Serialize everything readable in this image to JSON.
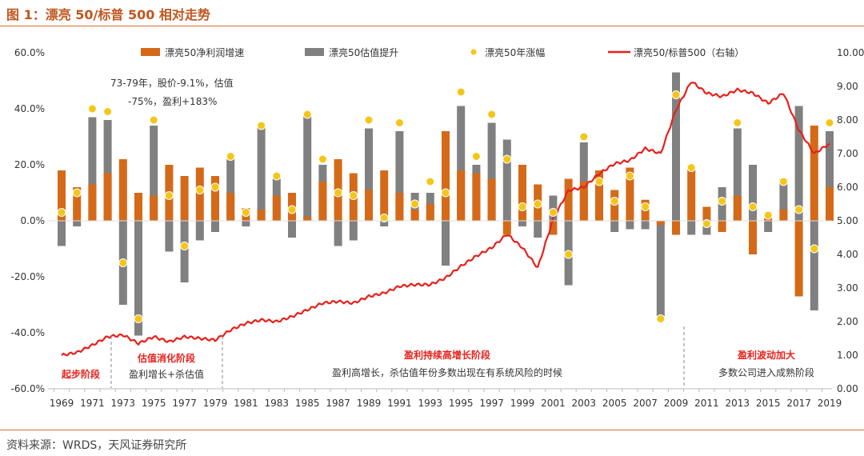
{
  "header": {
    "title": "图 1：漂亮 50/标普 500 相对走势"
  },
  "footer": {
    "source": "资料来源：WRDS，天风证券研究所"
  },
  "colors": {
    "orange": "#d46a18",
    "gray": "#808080",
    "gold": "#f5c518",
    "red": "#e8201b",
    "accent": "#c0561e"
  },
  "chart_data": {
    "type": "bar",
    "years": [
      1969,
      1970,
      1971,
      1972,
      1973,
      1974,
      1975,
      1976,
      1977,
      1978,
      1979,
      1980,
      1981,
      1982,
      1983,
      1984,
      1985,
      1986,
      1987,
      1988,
      1989,
      1990,
      1991,
      1992,
      1993,
      1994,
      1995,
      1996,
      1997,
      1998,
      1999,
      2000,
      2001,
      2002,
      2003,
      2004,
      2005,
      2006,
      2007,
      2008,
      2009,
      2010,
      2011,
      2012,
      2013,
      2014,
      2015,
      2016,
      2017,
      2018,
      2019
    ],
    "x_tick_labels": [
      "1969",
      "1971",
      "1973",
      "1975",
      "1977",
      "1979",
      "1981",
      "1983",
      "1985",
      "1987",
      "1989",
      "1991",
      "1993",
      "1995",
      "1997",
      "1999",
      "2001",
      "2003",
      "2005",
      "2007",
      "2009",
      "2011",
      "2013",
      "2015",
      "2017",
      "2019"
    ],
    "y_left_ticks": [
      "60.0%",
      "40.0%",
      "20.0%",
      "0.0%",
      "-20.0%",
      "-40.0%",
      "-60.0%"
    ],
    "y_right_ticks": [
      "10.00",
      "9.00",
      "8.00",
      "7.00",
      "6.00",
      "5.00",
      "4.00",
      "3.00",
      "2.00",
      "1.00",
      "0.00"
    ],
    "ylim_left": [
      -60,
      60
    ],
    "ylim_right": [
      0,
      10
    ],
    "legend_position": "top",
    "series": [
      {
        "name": "漂亮50净利润增速",
        "kind": "bar",
        "values": [
          18,
          12,
          13,
          17,
          22,
          10,
          9,
          20,
          16,
          19,
          16,
          10,
          4.5,
          4,
          9,
          10,
          1.5,
          14,
          22,
          17,
          11,
          18,
          10,
          4,
          6,
          32,
          18,
          17,
          15,
          -5,
          20,
          13,
          -5,
          15,
          14,
          18,
          11,
          19,
          7.5,
          -1.5,
          -5,
          19,
          5,
          -4,
          9,
          -12,
          1,
          4,
          -27,
          34,
          12
        ]
      },
      {
        "name": "漂亮50估值提升",
        "kind": "bar",
        "values": [
          -9,
          -2,
          37,
          36,
          -30,
          -41,
          34,
          -11,
          -22,
          -7,
          -4,
          22,
          -2,
          34,
          15,
          -6,
          38,
          20,
          -9,
          -7,
          33,
          -2,
          32,
          10,
          10,
          -16,
          41,
          20,
          35,
          29,
          -2,
          -6,
          9,
          -23,
          28,
          2,
          -4,
          -3,
          -3,
          -34,
          53,
          -5,
          -5,
          12,
          33,
          20,
          -4,
          15,
          41,
          -32,
          32
        ]
      },
      {
        "name": "漂亮50年涨幅",
        "kind": "scatter",
        "values": [
          3,
          10,
          40,
          39,
          -15,
          -35,
          36,
          9,
          -9,
          11,
          12,
          23,
          3,
          34,
          16,
          4,
          38,
          22,
          10,
          9,
          36,
          1,
          35,
          6,
          14,
          10,
          46,
          23,
          38,
          22,
          5,
          6,
          3,
          -12,
          30,
          14,
          7,
          16,
          5,
          -35,
          45,
          19,
          -1,
          7,
          35,
          5,
          2,
          14,
          4,
          -10,
          35
        ]
      },
      {
        "name": "漂亮50/标普500（右轴）",
        "kind": "line",
        "axis": "right",
        "points": [
          [
            1969,
            1.0
          ],
          [
            1970,
            1.08
          ],
          [
            1971,
            1.3
          ],
          [
            1972,
            1.55
          ],
          [
            1973,
            1.6
          ],
          [
            1974,
            1.35
          ],
          [
            1975,
            1.55
          ],
          [
            1976,
            1.4
          ],
          [
            1977,
            1.55
          ],
          [
            1978,
            1.5
          ],
          [
            1979,
            1.45
          ],
          [
            1980,
            1.75
          ],
          [
            1981,
            1.95
          ],
          [
            1982,
            2.05
          ],
          [
            1983,
            2.0
          ],
          [
            1984,
            2.15
          ],
          [
            1985,
            2.35
          ],
          [
            1986,
            2.55
          ],
          [
            1987,
            2.6
          ],
          [
            1988,
            2.55
          ],
          [
            1989,
            2.75
          ],
          [
            1990,
            2.85
          ],
          [
            1991,
            3.05
          ],
          [
            1992,
            3.1
          ],
          [
            1993,
            3.1
          ],
          [
            1994,
            3.3
          ],
          [
            1995,
            3.65
          ],
          [
            1996,
            3.95
          ],
          [
            1997,
            4.2
          ],
          [
            1998,
            4.6
          ],
          [
            1999,
            4.2
          ],
          [
            2000,
            3.6
          ],
          [
            2001,
            5.05
          ],
          [
            2002,
            5.9
          ],
          [
            2003,
            6.0
          ],
          [
            2004,
            6.4
          ],
          [
            2005,
            6.7
          ],
          [
            2006,
            6.8
          ],
          [
            2007,
            7.15
          ],
          [
            2008,
            7.0
          ],
          [
            2009,
            8.3
          ],
          [
            2010,
            9.15
          ],
          [
            2011,
            8.8
          ],
          [
            2012,
            8.7
          ],
          [
            2013,
            8.9
          ],
          [
            2014,
            8.8
          ],
          [
            2015,
            8.5
          ],
          [
            2016,
            8.8
          ],
          [
            2017,
            7.7
          ],
          [
            2018,
            7.0
          ],
          [
            2019,
            7.3
          ]
        ]
      }
    ],
    "annotations": [
      {
        "text": "73-79年，股价-9.1%，估值"
      },
      {
        "text": "-75%，盈利+183%"
      }
    ],
    "phases": [
      {
        "title": "起步阶段",
        "desc": ""
      },
      {
        "title": "估值消化阶段",
        "desc": "盈利增长+杀估值"
      },
      {
        "title": "盈利持续高增长阶段",
        "desc": "盈利高增长，杀估值年份多数出现在有系统风险的时候"
      },
      {
        "title": "盈利波动加大",
        "desc": "多数公司进入成熟阶段"
      }
    ]
  }
}
